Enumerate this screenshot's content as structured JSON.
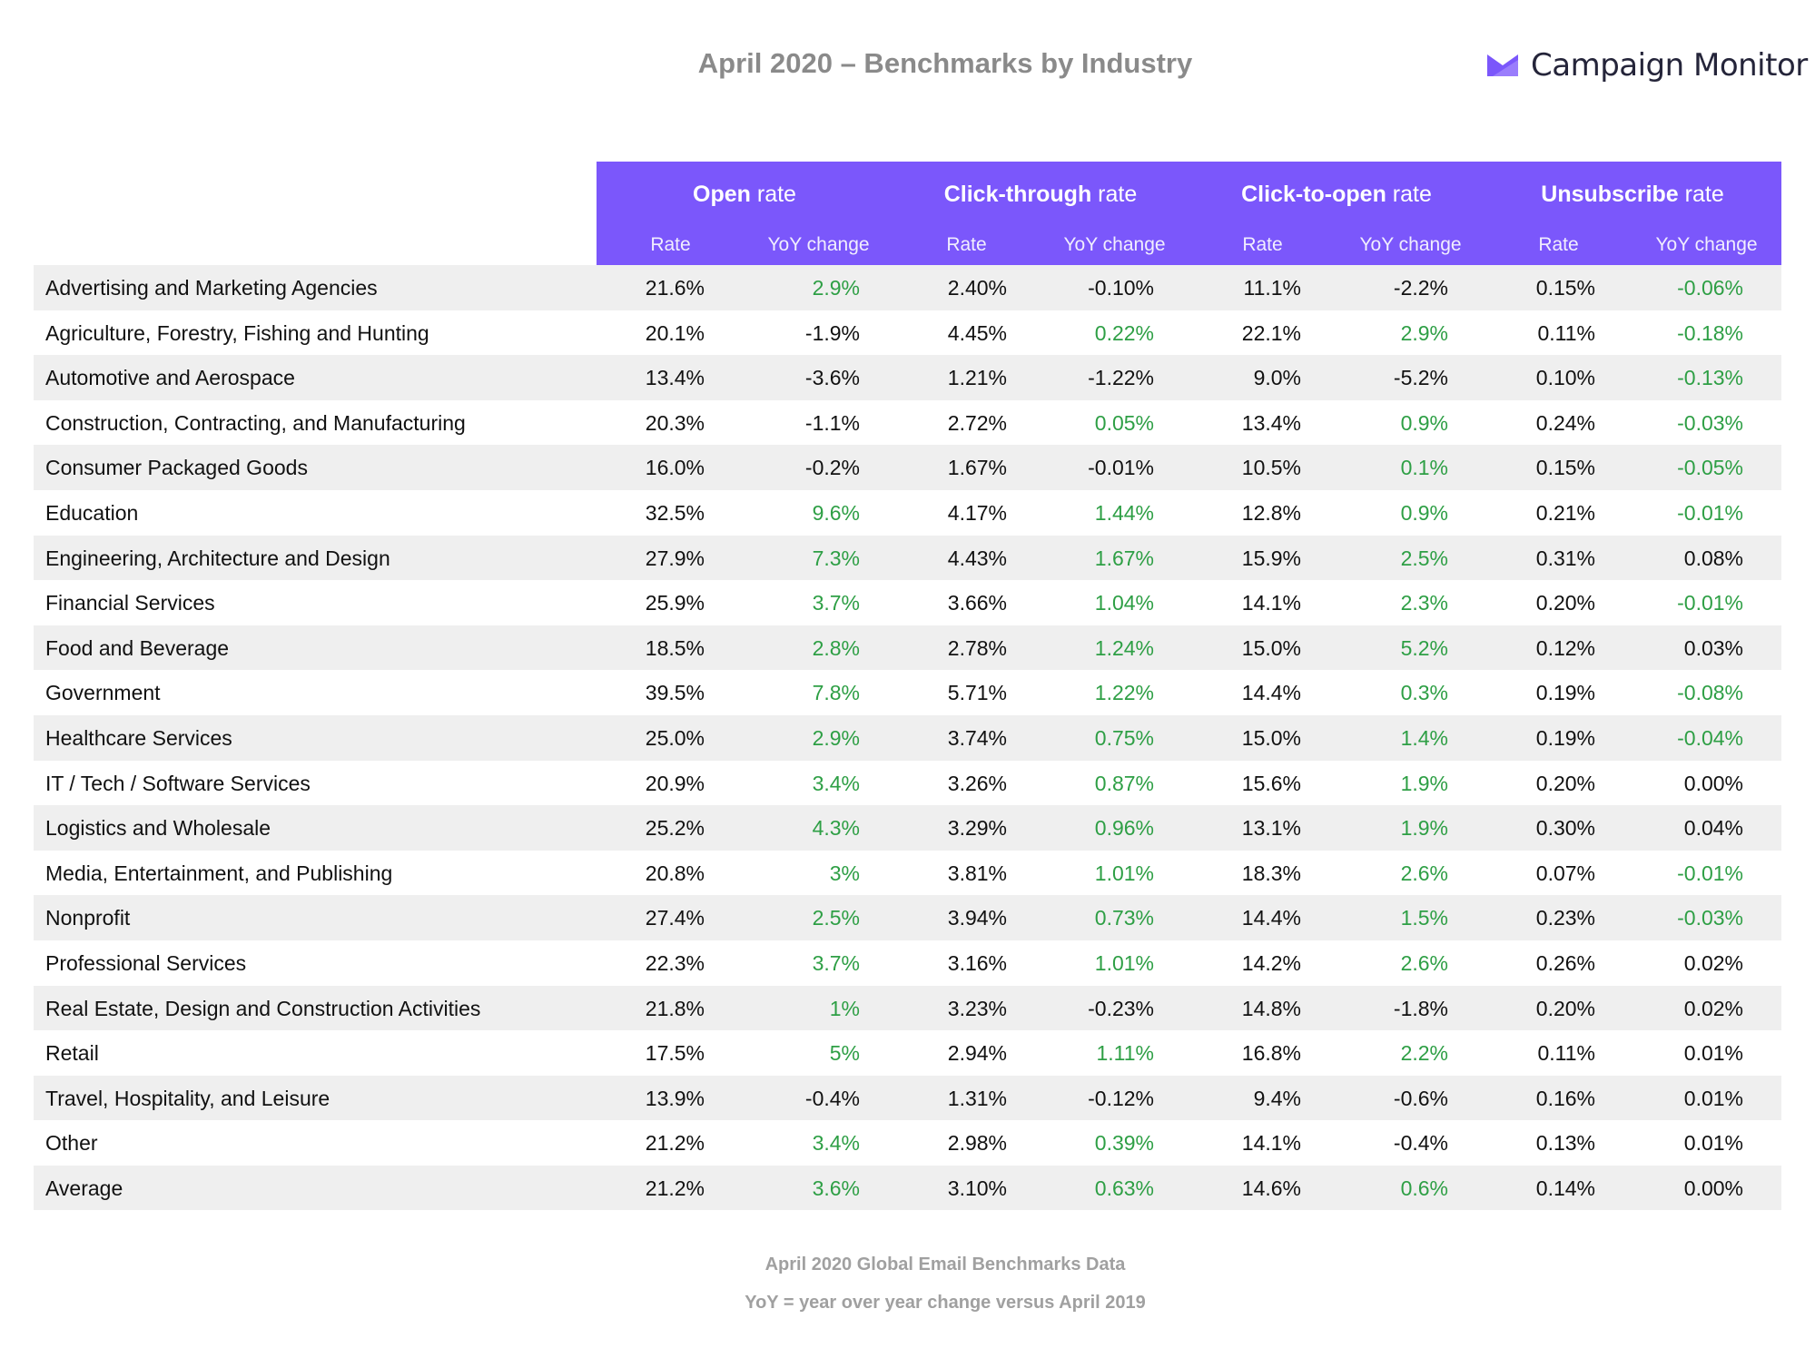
{
  "title": "April 2020 – Benchmarks by Industry",
  "logo": {
    "text": "Campaign Monitor",
    "icon": "envelope-logo-icon",
    "color": "#7b57fb"
  },
  "colors": {
    "header_bg": "#7b57fb",
    "positive": "#2e9f45",
    "text": "#111111"
  },
  "groups": [
    {
      "bold": "Open",
      "rest": " rate"
    },
    {
      "bold": "Click-through",
      "rest": " rate"
    },
    {
      "bold": "Click-to-open",
      "rest": " rate"
    },
    {
      "bold": "Unsubscribe",
      "rest": " rate"
    }
  ],
  "subheaders": [
    "Rate",
    "YoY change",
    "Rate",
    "YoY change",
    "Rate",
    "YoY change",
    "Rate",
    "YoY change"
  ],
  "rows": [
    [
      "Advertising and Marketing Agencies",
      "21.6%",
      "2.9%",
      "2.40%",
      "-0.10%",
      "11.1%",
      "-2.2%",
      "0.15%",
      "-0.06%"
    ],
    [
      "Agriculture, Forestry, Fishing and Hunting",
      "20.1%",
      "-1.9%",
      "4.45%",
      "0.22%",
      "22.1%",
      "2.9%",
      "0.11%",
      "-0.18%"
    ],
    [
      "Automotive and Aerospace",
      "13.4%",
      "-3.6%",
      "1.21%",
      "-1.22%",
      "9.0%",
      "-5.2%",
      "0.10%",
      "-0.13%"
    ],
    [
      "Construction, Contracting, and Manufacturing",
      "20.3%",
      "-1.1%",
      "2.72%",
      "0.05%",
      "13.4%",
      "0.9%",
      "0.24%",
      "-0.03%"
    ],
    [
      "Consumer Packaged Goods",
      "16.0%",
      "-0.2%",
      "1.67%",
      "-0.01%",
      "10.5%",
      "0.1%",
      "0.15%",
      "-0.05%"
    ],
    [
      "Education",
      "32.5%",
      "9.6%",
      "4.17%",
      "1.44%",
      "12.8%",
      "0.9%",
      "0.21%",
      "-0.01%"
    ],
    [
      "Engineering, Architecture and Design",
      "27.9%",
      "7.3%",
      "4.43%",
      "1.67%",
      "15.9%",
      "2.5%",
      "0.31%",
      "0.08%"
    ],
    [
      "Financial Services",
      "25.9%",
      "3.7%",
      "3.66%",
      "1.04%",
      "14.1%",
      "2.3%",
      "0.20%",
      "-0.01%"
    ],
    [
      "Food and Beverage",
      "18.5%",
      "2.8%",
      "2.78%",
      "1.24%",
      "15.0%",
      "5.2%",
      "0.12%",
      "0.03%"
    ],
    [
      "Government",
      "39.5%",
      "7.8%",
      "5.71%",
      "1.22%",
      "14.4%",
      "0.3%",
      "0.19%",
      "-0.08%"
    ],
    [
      "Healthcare Services",
      "25.0%",
      "2.9%",
      "3.74%",
      "0.75%",
      "15.0%",
      "1.4%",
      "0.19%",
      "-0.04%"
    ],
    [
      "IT / Tech / Software Services",
      "20.9%",
      "3.4%",
      "3.26%",
      "0.87%",
      "15.6%",
      "1.9%",
      "0.20%",
      "0.00%"
    ],
    [
      "Logistics and Wholesale",
      "25.2%",
      "4.3%",
      "3.29%",
      "0.96%",
      "13.1%",
      "1.9%",
      "0.30%",
      "0.04%"
    ],
    [
      "Media, Entertainment, and Publishing",
      "20.8%",
      "3%",
      "3.81%",
      "1.01%",
      "18.3%",
      "2.6%",
      "0.07%",
      "-0.01%"
    ],
    [
      "Nonprofit",
      "27.4%",
      "2.5%",
      "3.94%",
      "0.73%",
      "14.4%",
      "1.5%",
      "0.23%",
      "-0.03%"
    ],
    [
      "Professional Services",
      "22.3%",
      "3.7%",
      "3.16%",
      "1.01%",
      "14.2%",
      "2.6%",
      "0.26%",
      "0.02%"
    ],
    [
      "Real Estate, Design and Construction Activities",
      "21.8%",
      "1%",
      "3.23%",
      "-0.23%",
      "14.8%",
      "-1.8%",
      "0.20%",
      "0.02%"
    ],
    [
      "Retail",
      "17.5%",
      "5%",
      "2.94%",
      "1.11%",
      "16.8%",
      "2.2%",
      "0.11%",
      "0.01%"
    ],
    [
      "Travel, Hospitality, and Leisure",
      "13.9%",
      "-0.4%",
      "1.31%",
      "-0.12%",
      "9.4%",
      "-0.6%",
      "0.16%",
      "0.01%"
    ],
    [
      "Other",
      "21.2%",
      "3.4%",
      "2.98%",
      "0.39%",
      "14.1%",
      "-0.4%",
      "0.13%",
      "0.01%"
    ],
    [
      "Average",
      "21.2%",
      "3.6%",
      "3.10%",
      "0.63%",
      "14.6%",
      "0.6%",
      "0.14%",
      "0.00%"
    ]
  ],
  "footer": [
    "April 2020 Global Email Benchmarks Data",
    "YoY = year over year change versus April 2019"
  ]
}
